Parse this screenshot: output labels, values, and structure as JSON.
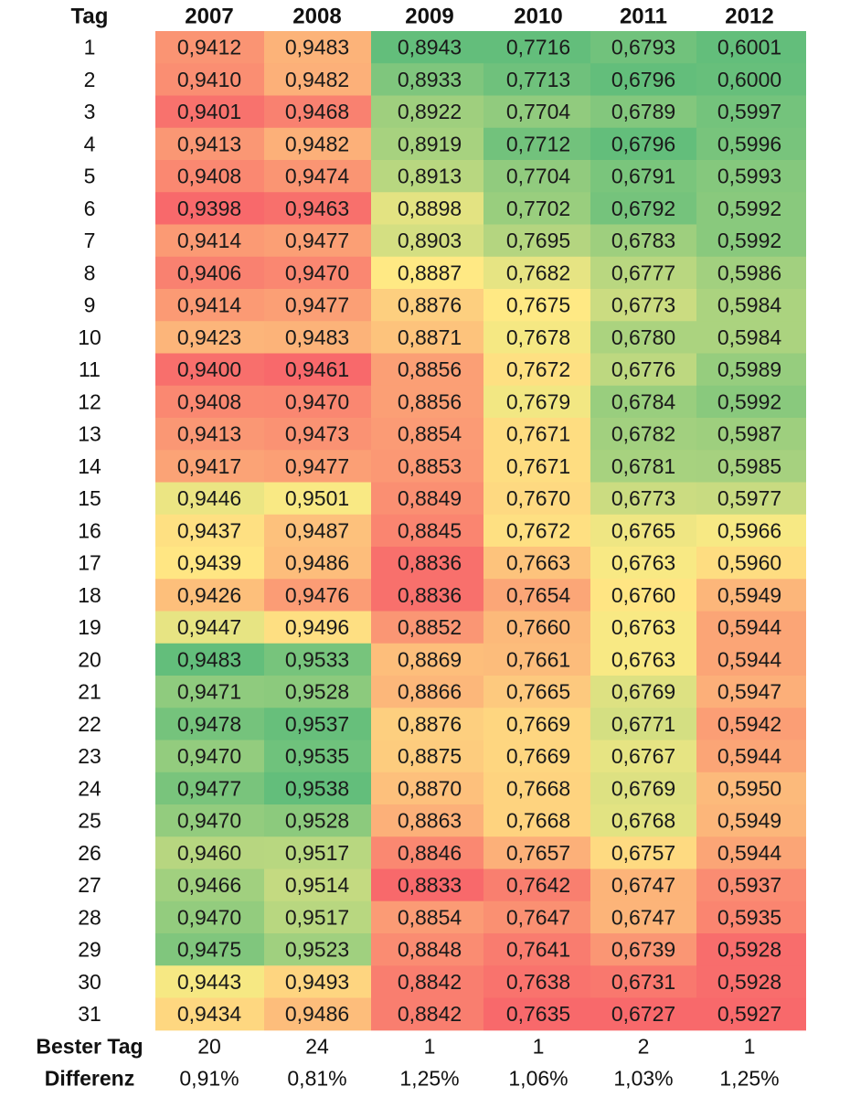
{
  "chart_data": {
    "type": "heatmap",
    "row_header": "Tag",
    "columns": [
      "2007",
      "2008",
      "2009",
      "2010",
      "2011",
      "2012"
    ],
    "rows": [
      "1",
      "2",
      "3",
      "4",
      "5",
      "6",
      "7",
      "8",
      "9",
      "10",
      "11",
      "12",
      "13",
      "14",
      "15",
      "16",
      "17",
      "18",
      "19",
      "20",
      "21",
      "22",
      "23",
      "24",
      "25",
      "26",
      "27",
      "28",
      "29",
      "30",
      "31"
    ],
    "values": [
      [
        "0,9412",
        "0,9483",
        "0,8943",
        "0,7716",
        "0,6793",
        "0,6001"
      ],
      [
        "0,9410",
        "0,9482",
        "0,8933",
        "0,7713",
        "0,6796",
        "0,6000"
      ],
      [
        "0,9401",
        "0,9468",
        "0,8922",
        "0,7704",
        "0,6789",
        "0,5997"
      ],
      [
        "0,9413",
        "0,9482",
        "0,8919",
        "0,7712",
        "0,6796",
        "0,5996"
      ],
      [
        "0,9408",
        "0,9474",
        "0,8913",
        "0,7704",
        "0,6791",
        "0,5993"
      ],
      [
        "0,9398",
        "0,9463",
        "0,8898",
        "0,7702",
        "0,6792",
        "0,5992"
      ],
      [
        "0,9414",
        "0,9477",
        "0,8903",
        "0,7695",
        "0,6783",
        "0,5992"
      ],
      [
        "0,9406",
        "0,9470",
        "0,8887",
        "0,7682",
        "0,6777",
        "0,5986"
      ],
      [
        "0,9414",
        "0,9477",
        "0,8876",
        "0,7675",
        "0,6773",
        "0,5984"
      ],
      [
        "0,9423",
        "0,9483",
        "0,8871",
        "0,7678",
        "0,6780",
        "0,5984"
      ],
      [
        "0,9400",
        "0,9461",
        "0,8856",
        "0,7672",
        "0,6776",
        "0,5989"
      ],
      [
        "0,9408",
        "0,9470",
        "0,8856",
        "0,7679",
        "0,6784",
        "0,5992"
      ],
      [
        "0,9413",
        "0,9473",
        "0,8854",
        "0,7671",
        "0,6782",
        "0,5987"
      ],
      [
        "0,9417",
        "0,9477",
        "0,8853",
        "0,7671",
        "0,6781",
        "0,5985"
      ],
      [
        "0,9446",
        "0,9501",
        "0,8849",
        "0,7670",
        "0,6773",
        "0,5977"
      ],
      [
        "0,9437",
        "0,9487",
        "0,8845",
        "0,7672",
        "0,6765",
        "0,5966"
      ],
      [
        "0,9439",
        "0,9486",
        "0,8836",
        "0,7663",
        "0,6763",
        "0,5960"
      ],
      [
        "0,9426",
        "0,9476",
        "0,8836",
        "0,7654",
        "0,6760",
        "0,5949"
      ],
      [
        "0,9447",
        "0,9496",
        "0,8852",
        "0,7660",
        "0,6763",
        "0,5944"
      ],
      [
        "0,9483",
        "0,9533",
        "0,8869",
        "0,7661",
        "0,6763",
        "0,5944"
      ],
      [
        "0,9471",
        "0,9528",
        "0,8866",
        "0,7665",
        "0,6769",
        "0,5947"
      ],
      [
        "0,9478",
        "0,9537",
        "0,8876",
        "0,7669",
        "0,6771",
        "0,5942"
      ],
      [
        "0,9470",
        "0,9535",
        "0,8875",
        "0,7669",
        "0,6767",
        "0,5944"
      ],
      [
        "0,9477",
        "0,9538",
        "0,8870",
        "0,7668",
        "0,6769",
        "0,5950"
      ],
      [
        "0,9470",
        "0,9528",
        "0,8863",
        "0,7668",
        "0,6768",
        "0,5949"
      ],
      [
        "0,9460",
        "0,9517",
        "0,8846",
        "0,7657",
        "0,6757",
        "0,5944"
      ],
      [
        "0,9466",
        "0,9514",
        "0,8833",
        "0,7642",
        "0,6747",
        "0,5937"
      ],
      [
        "0,9470",
        "0,9517",
        "0,8854",
        "0,7647",
        "0,6747",
        "0,5935"
      ],
      [
        "0,9475",
        "0,9523",
        "0,8848",
        "0,7641",
        "0,6739",
        "0,5928"
      ],
      [
        "0,9443",
        "0,9493",
        "0,8842",
        "0,7638",
        "0,6731",
        "0,5928"
      ],
      [
        "0,9434",
        "0,9486",
        "0,8842",
        "0,7635",
        "0,6727",
        "0,5927"
      ]
    ],
    "summary": [
      {
        "label": "Bester Tag",
        "values": [
          "20",
          "24",
          "1",
          "1",
          "2",
          "1"
        ]
      },
      {
        "label": "Differenz",
        "values": [
          "0,91%",
          "0,81%",
          "1,25%",
          "1,06%",
          "1,03%",
          "1,25%"
        ]
      }
    ],
    "color_scale": {
      "low": "#f8696b",
      "mid": "#ffeb84",
      "high": "#63be7b",
      "per_column": true
    },
    "grid": false,
    "legend": "none"
  }
}
